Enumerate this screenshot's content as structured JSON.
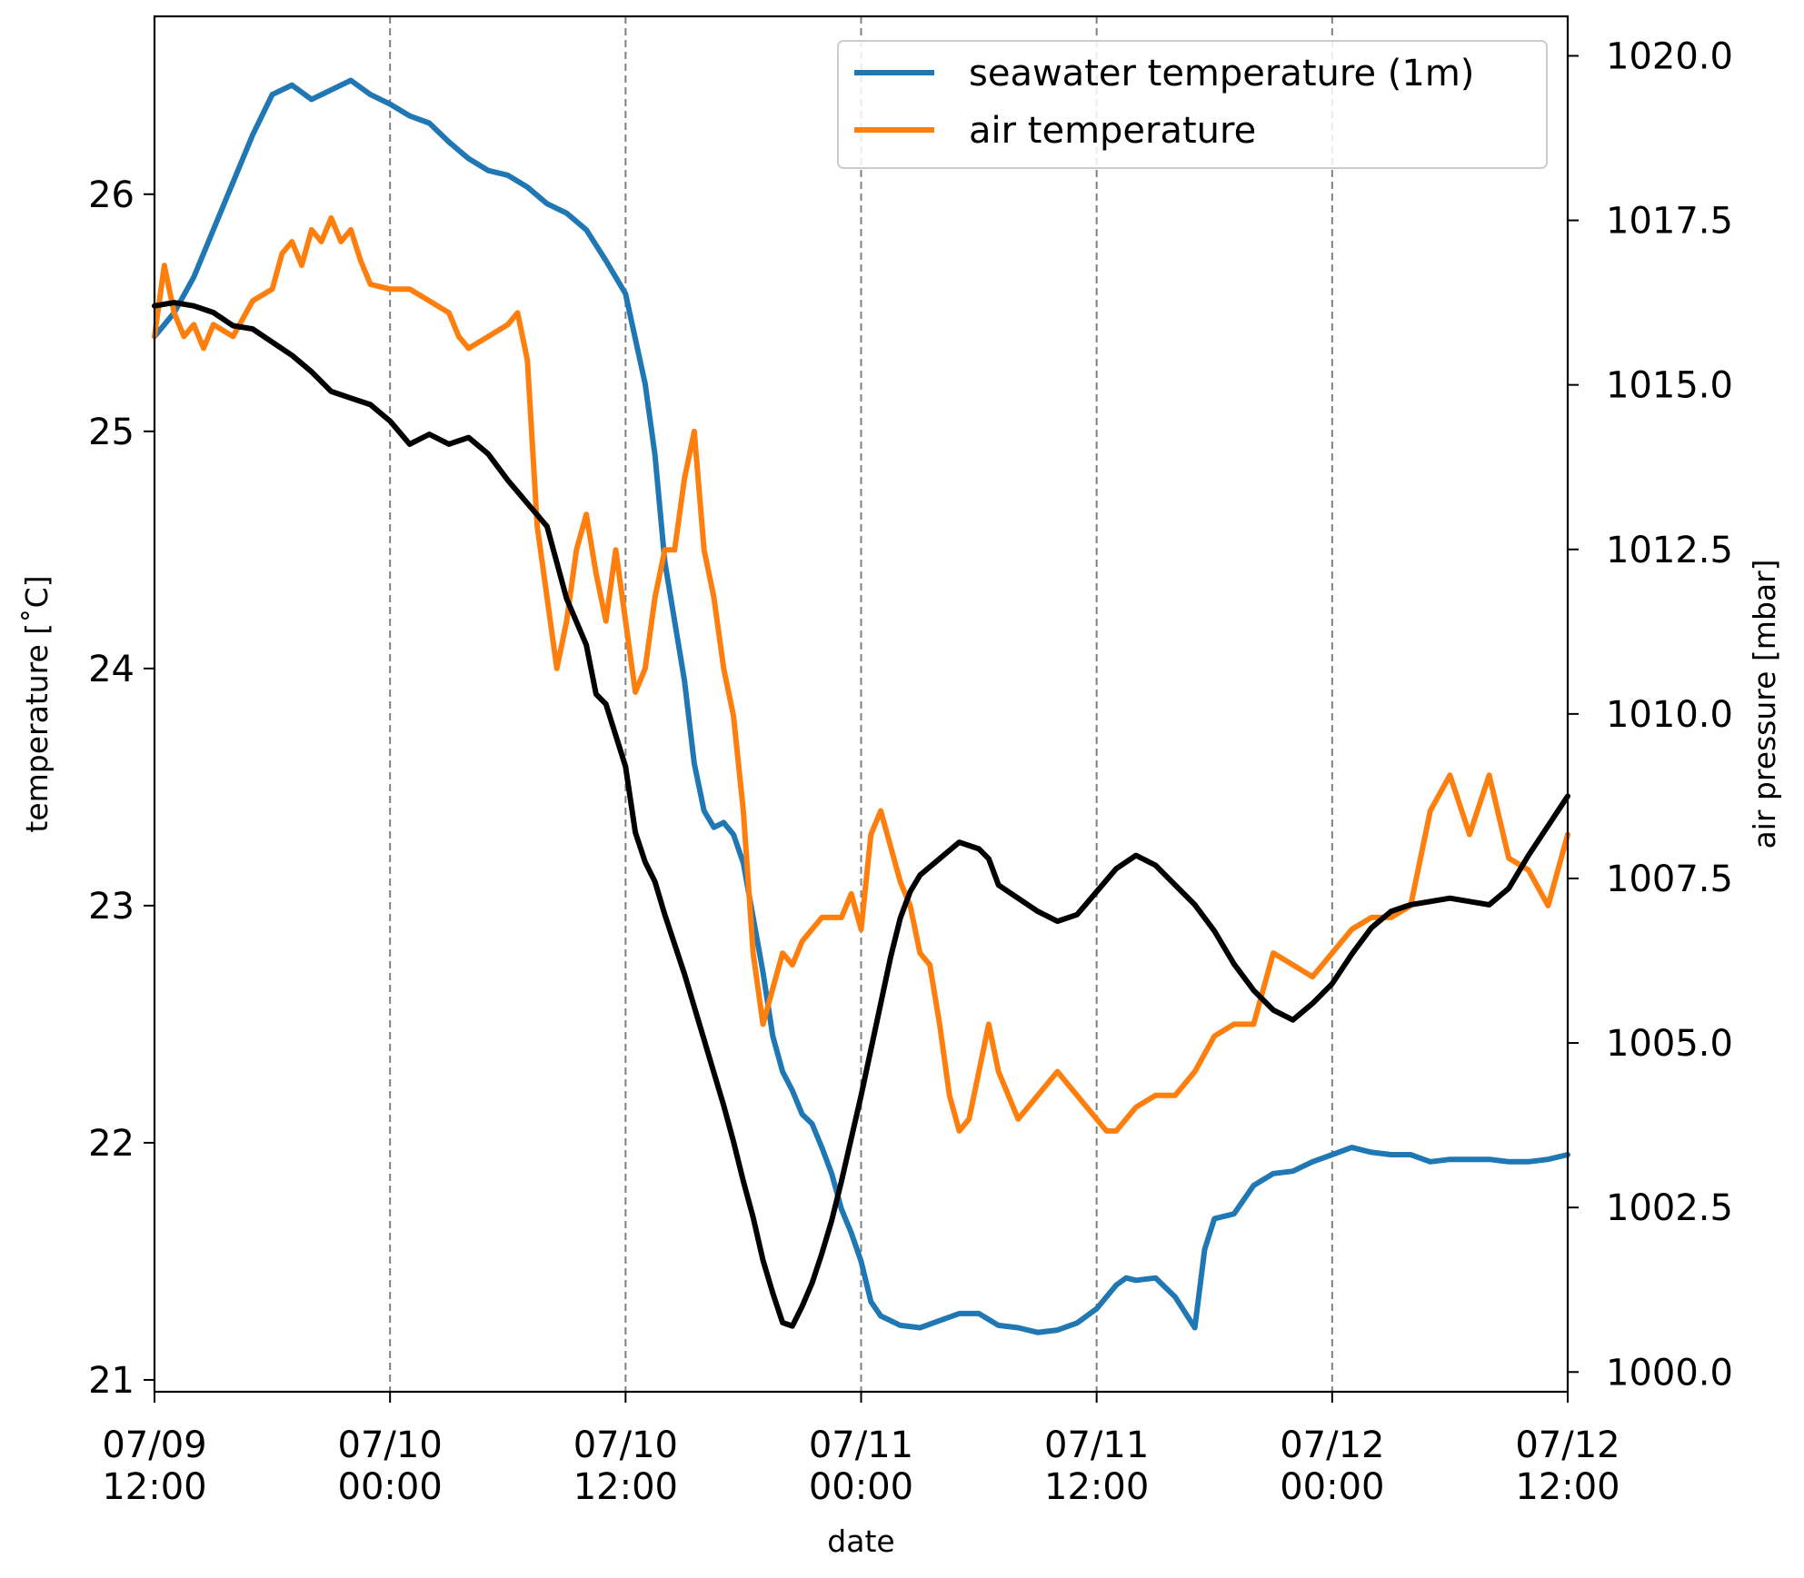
{
  "chart_data": {
    "type": "line",
    "xlabel": "date",
    "ylabel_left": "temperature [˚C]",
    "ylabel_right": "air pressure [mbar]",
    "x_ticks": [
      {
        "x": 0,
        "line1": "07/09",
        "line2": "12:00"
      },
      {
        "x": 12,
        "line1": "07/10",
        "line2": "00:00"
      },
      {
        "x": 24,
        "line1": "07/10",
        "line2": "12:00"
      },
      {
        "x": 36,
        "line1": "07/11",
        "line2": "00:00"
      },
      {
        "x": 48,
        "line1": "07/11",
        "line2": "12:00"
      },
      {
        "x": 60,
        "line1": "07/12",
        "line2": "00:00"
      },
      {
        "x": 72,
        "line1": "07/12",
        "line2": "12:00"
      }
    ],
    "x_range_hours_from": "07/09 12:00",
    "xlim": [
      0,
      72
    ],
    "vertical_gridlines_at": [
      12,
      24,
      36,
      48,
      60
    ],
    "ylim_left": [
      20.95,
      26.75
    ],
    "yticks_left": [
      "21",
      "22",
      "23",
      "24",
      "25",
      "26"
    ],
    "ylim_right": [
      999.7,
      1020.6
    ],
    "yticks_right": [
      "1000.0",
      "1002.5",
      "1005.0",
      "1007.5",
      "1010.0",
      "1012.5",
      "1015.0",
      "1017.5",
      "1020.0"
    ],
    "legend": {
      "placement": "top-right",
      "entries": [
        {
          "label": "seawater temperature (1m)",
          "color": "#1f77b4"
        },
        {
          "label": "air temperature",
          "color": "#ff7f0e"
        }
      ]
    },
    "series": [
      {
        "name": "seawater temperature (1m)",
        "axis": "left",
        "color": "#1f77b4",
        "points": [
          [
            0,
            25.4
          ],
          [
            1,
            25.5
          ],
          [
            2,
            25.65
          ],
          [
            3,
            25.85
          ],
          [
            4,
            26.05
          ],
          [
            5,
            26.25
          ],
          [
            6,
            26.42
          ],
          [
            7,
            26.46
          ],
          [
            8,
            26.4
          ],
          [
            9,
            26.44
          ],
          [
            10,
            26.48
          ],
          [
            11,
            26.42
          ],
          [
            12,
            26.38
          ],
          [
            13,
            26.33
          ],
          [
            14,
            26.3
          ],
          [
            15,
            26.22
          ],
          [
            16,
            26.15
          ],
          [
            17,
            26.1
          ],
          [
            18,
            26.08
          ],
          [
            19,
            26.03
          ],
          [
            20,
            25.96
          ],
          [
            21,
            25.92
          ],
          [
            22,
            25.85
          ],
          [
            23,
            25.72
          ],
          [
            24,
            25.58
          ],
          [
            25,
            25.2
          ],
          [
            25.5,
            24.9
          ],
          [
            26,
            24.45
          ],
          [
            27,
            23.95
          ],
          [
            27.5,
            23.6
          ],
          [
            28,
            23.4
          ],
          [
            28.5,
            23.33
          ],
          [
            29,
            23.35
          ],
          [
            29.5,
            23.3
          ],
          [
            30,
            23.18
          ],
          [
            30.5,
            22.95
          ],
          [
            31,
            22.72
          ],
          [
            31.5,
            22.45
          ],
          [
            32,
            22.3
          ],
          [
            32.5,
            22.22
          ],
          [
            33,
            22.12
          ],
          [
            33.5,
            22.08
          ],
          [
            34,
            21.98
          ],
          [
            34.5,
            21.87
          ],
          [
            35,
            21.72
          ],
          [
            35.5,
            21.62
          ],
          [
            36,
            21.5
          ],
          [
            36.5,
            21.33
          ],
          [
            37,
            21.27
          ],
          [
            38,
            21.23
          ],
          [
            39,
            21.22
          ],
          [
            40,
            21.25
          ],
          [
            41,
            21.28
          ],
          [
            42,
            21.28
          ],
          [
            43,
            21.23
          ],
          [
            44,
            21.22
          ],
          [
            45,
            21.2
          ],
          [
            46,
            21.21
          ],
          [
            47,
            21.24
          ],
          [
            48,
            21.3
          ],
          [
            49,
            21.4
          ],
          [
            49.5,
            21.43
          ],
          [
            50,
            21.42
          ],
          [
            51,
            21.43
          ],
          [
            52,
            21.35
          ],
          [
            53,
            21.22
          ],
          [
            53.5,
            21.55
          ],
          [
            54,
            21.68
          ],
          [
            55,
            21.7
          ],
          [
            56,
            21.82
          ],
          [
            57,
            21.87
          ],
          [
            58,
            21.88
          ],
          [
            59,
            21.92
          ],
          [
            60,
            21.95
          ],
          [
            61,
            21.98
          ],
          [
            62,
            21.96
          ],
          [
            63,
            21.95
          ],
          [
            64,
            21.95
          ],
          [
            65,
            21.92
          ],
          [
            66,
            21.93
          ],
          [
            67,
            21.93
          ],
          [
            68,
            21.93
          ],
          [
            69,
            21.92
          ],
          [
            70,
            21.92
          ],
          [
            71,
            21.93
          ],
          [
            72,
            21.95
          ]
        ]
      },
      {
        "name": "air temperature",
        "axis": "left",
        "color": "#ff7f0e",
        "points": [
          [
            0,
            25.4
          ],
          [
            0.5,
            25.7
          ],
          [
            1,
            25.5
          ],
          [
            1.5,
            25.4
          ],
          [
            2,
            25.45
          ],
          [
            2.5,
            25.35
          ],
          [
            3,
            25.45
          ],
          [
            4,
            25.4
          ],
          [
            5,
            25.55
          ],
          [
            6,
            25.6
          ],
          [
            6.5,
            25.75
          ],
          [
            7,
            25.8
          ],
          [
            7.5,
            25.7
          ],
          [
            8,
            25.85
          ],
          [
            8.5,
            25.8
          ],
          [
            9,
            25.9
          ],
          [
            9.5,
            25.8
          ],
          [
            10,
            25.85
          ],
          [
            10.5,
            25.72
          ],
          [
            11,
            25.62
          ],
          [
            12,
            25.6
          ],
          [
            13,
            25.6
          ],
          [
            14,
            25.55
          ],
          [
            15,
            25.5
          ],
          [
            15.5,
            25.4
          ],
          [
            16,
            25.35
          ],
          [
            17,
            25.4
          ],
          [
            18,
            25.45
          ],
          [
            18.5,
            25.5
          ],
          [
            19,
            25.3
          ],
          [
            19.5,
            24.6
          ],
          [
            20,
            24.3
          ],
          [
            20.5,
            24
          ],
          [
            21,
            24.2
          ],
          [
            21.5,
            24.5
          ],
          [
            22,
            24.65
          ],
          [
            22.5,
            24.4
          ],
          [
            23,
            24.2
          ],
          [
            23.5,
            24.5
          ],
          [
            24,
            24.2
          ],
          [
            24.5,
            23.9
          ],
          [
            25,
            24
          ],
          [
            25.5,
            24.3
          ],
          [
            26,
            24.5
          ],
          [
            26.5,
            24.5
          ],
          [
            27,
            24.8
          ],
          [
            27.5,
            25
          ],
          [
            28,
            24.5
          ],
          [
            28.5,
            24.3
          ],
          [
            29,
            24
          ],
          [
            29.5,
            23.8
          ],
          [
            30,
            23.4
          ],
          [
            30.5,
            22.8
          ],
          [
            31,
            22.5
          ],
          [
            31.5,
            22.65
          ],
          [
            32,
            22.8
          ],
          [
            32.5,
            22.75
          ],
          [
            33,
            22.85
          ],
          [
            34,
            22.95
          ],
          [
            35,
            22.95
          ],
          [
            35.5,
            23.05
          ],
          [
            36,
            22.9
          ],
          [
            36.5,
            23.3
          ],
          [
            37,
            23.4
          ],
          [
            37.5,
            23.25
          ],
          [
            38,
            23.1
          ],
          [
            38.5,
            23
          ],
          [
            39,
            22.8
          ],
          [
            39.5,
            22.75
          ],
          [
            40,
            22.5
          ],
          [
            40.5,
            22.2
          ],
          [
            41,
            22.05
          ],
          [
            41.5,
            22.1
          ],
          [
            42,
            22.3
          ],
          [
            42.5,
            22.5
          ],
          [
            43,
            22.3
          ],
          [
            43.5,
            22.2
          ],
          [
            44,
            22.1
          ],
          [
            45,
            22.2
          ],
          [
            46,
            22.3
          ],
          [
            47,
            22.2
          ],
          [
            48,
            22.1
          ],
          [
            48.5,
            22.05
          ],
          [
            49,
            22.05
          ],
          [
            49.5,
            22.1
          ],
          [
            50,
            22.15
          ],
          [
            51,
            22.2
          ],
          [
            52,
            22.2
          ],
          [
            53,
            22.3
          ],
          [
            54,
            22.45
          ],
          [
            55,
            22.5
          ],
          [
            56,
            22.5
          ],
          [
            57,
            22.8
          ],
          [
            58,
            22.75
          ],
          [
            59,
            22.7
          ],
          [
            60,
            22.8
          ],
          [
            61,
            22.9
          ],
          [
            62,
            22.95
          ],
          [
            63,
            22.95
          ],
          [
            64,
            23
          ],
          [
            65,
            23.4
          ],
          [
            66,
            23.55
          ],
          [
            67,
            23.3
          ],
          [
            68,
            23.55
          ],
          [
            69,
            23.2
          ],
          [
            70,
            23.15
          ],
          [
            71,
            23
          ],
          [
            72,
            23.3
          ]
        ]
      },
      {
        "name": "",
        "axis": "right",
        "color": "#000000",
        "points": [
          [
            0,
            1016.2
          ],
          [
            1,
            1016.25
          ],
          [
            2,
            1016.2
          ],
          [
            3,
            1016.1
          ],
          [
            4,
            1015.9
          ],
          [
            5,
            1015.85
          ],
          [
            6,
            1015.65
          ],
          [
            7,
            1015.45
          ],
          [
            8,
            1015.2
          ],
          [
            9,
            1014.9
          ],
          [
            10,
            1014.8
          ],
          [
            11,
            1014.7
          ],
          [
            12,
            1014.45
          ],
          [
            13,
            1014.1
          ],
          [
            14,
            1014.25
          ],
          [
            15,
            1014.1
          ],
          [
            16,
            1014.2
          ],
          [
            17,
            1013.95
          ],
          [
            18,
            1013.55
          ],
          [
            19,
            1013.2
          ],
          [
            20,
            1012.85
          ],
          [
            20.5,
            1012.3
          ],
          [
            21,
            1011.75
          ],
          [
            22,
            1011.05
          ],
          [
            22.5,
            1010.3
          ],
          [
            23,
            1010.15
          ],
          [
            24,
            1009.2
          ],
          [
            24.5,
            1008.2
          ],
          [
            25,
            1007.75
          ],
          [
            25.5,
            1007.45
          ],
          [
            26,
            1006.95
          ],
          [
            26.5,
            1006.5
          ],
          [
            27,
            1006.05
          ],
          [
            27.5,
            1005.55
          ],
          [
            28,
            1005.05
          ],
          [
            28.5,
            1004.55
          ],
          [
            29,
            1004.05
          ],
          [
            29.5,
            1003.5
          ],
          [
            30,
            1002.9
          ],
          [
            30.5,
            1002.35
          ],
          [
            31,
            1001.7
          ],
          [
            31.5,
            1001.2
          ],
          [
            32,
            1000.75
          ],
          [
            32.5,
            1000.7
          ],
          [
            33,
            1001
          ],
          [
            33.5,
            1001.35
          ],
          [
            34,
            1001.8
          ],
          [
            34.5,
            1002.3
          ],
          [
            35,
            1002.9
          ],
          [
            35.5,
            1003.55
          ],
          [
            36,
            1004.2
          ],
          [
            36.5,
            1004.9
          ],
          [
            37,
            1005.6
          ],
          [
            37.5,
            1006.3
          ],
          [
            38,
            1006.9
          ],
          [
            38.5,
            1007.3
          ],
          [
            39,
            1007.55
          ],
          [
            40,
            1007.8
          ],
          [
            41,
            1008.05
          ],
          [
            42,
            1007.95
          ],
          [
            42.5,
            1007.8
          ],
          [
            43,
            1007.4
          ],
          [
            44,
            1007.2
          ],
          [
            45,
            1007
          ],
          [
            46,
            1006.85
          ],
          [
            47,
            1006.95
          ],
          [
            48,
            1007.3
          ],
          [
            49,
            1007.65
          ],
          [
            50,
            1007.85
          ],
          [
            51,
            1007.7
          ],
          [
            52,
            1007.4
          ],
          [
            53,
            1007.1
          ],
          [
            54,
            1006.7
          ],
          [
            55,
            1006.2
          ],
          [
            56,
            1005.8
          ],
          [
            57,
            1005.5
          ],
          [
            58,
            1005.35
          ],
          [
            59,
            1005.6
          ],
          [
            60,
            1005.9
          ],
          [
            61,
            1006.35
          ],
          [
            62,
            1006.75
          ],
          [
            63,
            1007
          ],
          [
            64,
            1007.1
          ],
          [
            65,
            1007.15
          ],
          [
            66,
            1007.2
          ],
          [
            67,
            1007.15
          ],
          [
            68,
            1007.1
          ],
          [
            69,
            1007.35
          ],
          [
            70,
            1007.85
          ],
          [
            71,
            1008.3
          ],
          [
            72,
            1008.75
          ]
        ]
      }
    ]
  }
}
